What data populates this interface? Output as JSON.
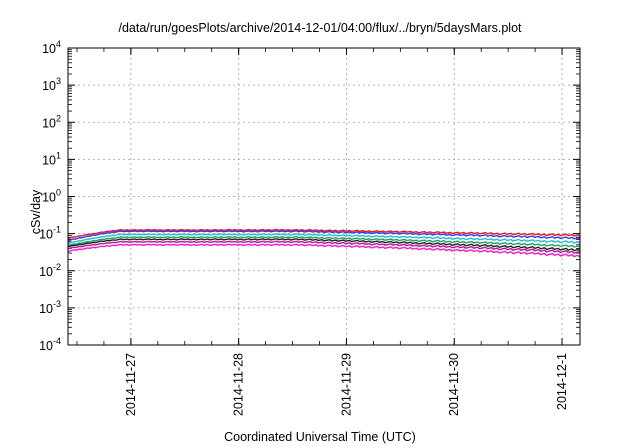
{
  "chart_data": {
    "type": "line",
    "title": "/data/run/goesPlots/archive/2014-12-01/04:00/flux/../bryn/5daysMars.plot",
    "xlabel": "Coordinated Universal Time (UTC)",
    "ylabel": "cSv/day",
    "y_scale": "log",
    "ylim": [
      0.0001,
      10000
    ],
    "y_ticks": [
      {
        "value": 0.0001,
        "base": "10",
        "exp": "-4"
      },
      {
        "value": 0.001,
        "base": "10",
        "exp": "-3"
      },
      {
        "value": 0.01,
        "base": "10",
        "exp": "-2"
      },
      {
        "value": 0.1,
        "base": "10",
        "exp": "-1"
      },
      {
        "value": 1,
        "base": "10",
        "exp": "0"
      },
      {
        "value": 10,
        "base": "10",
        "exp": "1"
      },
      {
        "value": 100,
        "base": "10",
        "exp": "2"
      },
      {
        "value": 1000,
        "base": "10",
        "exp": "3"
      },
      {
        "value": 10000,
        "base": "10",
        "exp": "4"
      }
    ],
    "xlim": [
      "2014-11-26 10:00",
      "2014-12-01 04:00"
    ],
    "x_ticks": [
      "2014-11-27",
      "2014-11-28",
      "2014-11-29",
      "2014-11-30",
      "2014-12-1"
    ],
    "grid": true,
    "legend": "none",
    "series": [
      {
        "color": "#e3172b",
        "start": 0.075,
        "plateau": 0.125,
        "end": 0.09,
        "saw": 0.12
      },
      {
        "color": "#3a3ae6",
        "start": 0.065,
        "plateau": 0.115,
        "end": 0.075,
        "saw": 0.12
      },
      {
        "color": "#27bcd0",
        "start": 0.055,
        "plateau": 0.095,
        "end": 0.058,
        "saw": 0.13
      },
      {
        "color": "#1ea060",
        "start": 0.048,
        "plateau": 0.08,
        "end": 0.045,
        "saw": 0.13
      },
      {
        "color": "#222222",
        "start": 0.045,
        "plateau": 0.07,
        "end": 0.036,
        "saw": 0.14
      },
      {
        "color": "#b4179a",
        "start": 0.04,
        "plateau": 0.06,
        "end": 0.031,
        "saw": 0.14
      },
      {
        "color": "#f01cd0",
        "start": 0.034,
        "plateau": 0.05,
        "end": 0.025,
        "saw": 0.15
      }
    ]
  }
}
